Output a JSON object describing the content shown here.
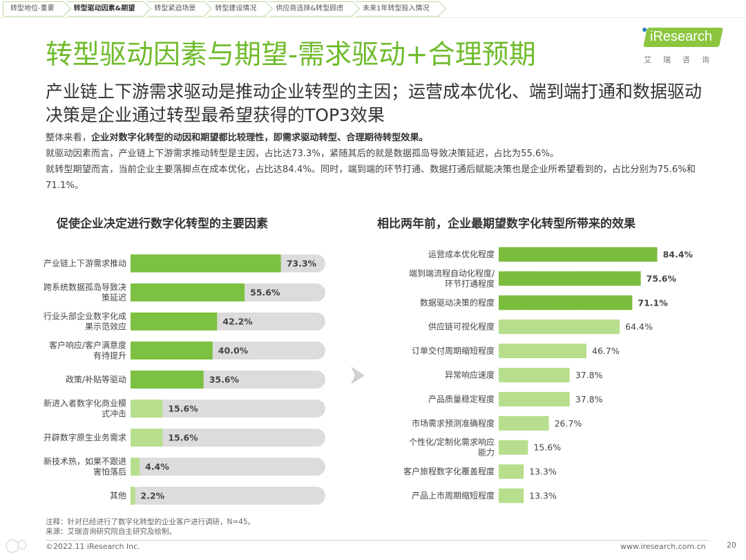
{
  "nav": {
    "tabs": [
      {
        "label": "转型地位-重要",
        "active": false
      },
      {
        "label": "转型驱动因素&期望",
        "active": true
      },
      {
        "label": "转型紧迫场景",
        "active": false
      },
      {
        "label": "转型建设情况",
        "active": false
      },
      {
        "label": "供应商选择&转型顾虑",
        "active": false
      },
      {
        "label": "未来1年转型投入情况",
        "active": false
      }
    ]
  },
  "logo": {
    "brand": "iResearch",
    "sub": "艾瑞咨询"
  },
  "title": "转型驱动因素与期望-需求驱动+合理预期",
  "subtitle": "产业链上下游需求驱动是推动企业转型的主因；运营成本优化、端到端打通和数据驱动决策是企业通过转型最希望获得的TOP3效果",
  "body": {
    "p1_prefix": "整体来看，",
    "p1_bold": "企业对数字化转型的动因和期望都比较理性，即需求驱动转型、合理期待转型效果。",
    "p2": "就驱动因素而言，产业链上下游需求推动转型是主因，占比达73.3%，紧随其后的就是数据孤岛导致决策延迟，占比为55.6%。",
    "p3": "就转型期望而言，当前企业主要落脚点在成本优化，占比达84.4%。同时，端到端的环节打通、数据打通后赋能决策也是企业所希望看到的，占比分别为75.6%和71.1%。"
  },
  "footer": {
    "note": "注释：针对已经进行了数字化转型的企业客户进行调研，N=45。",
    "source": "来源：艾瑞咨询研究院自主研究及绘制。",
    "copyright": "©2022.11 iResearch Inc.",
    "url": "www.iresearch.com.cn",
    "page": "20"
  },
  "colors": {
    "accent": "#6fbb2c",
    "bar_dark": "#7dc142",
    "bar_light": "#b7de8d",
    "track": "#dcdcdc"
  },
  "chart_data": [
    {
      "type": "bar",
      "orientation": "horizontal",
      "title": "促使企业决定进行数字化转型的主要因素",
      "categories": [
        "产业链上下游需求推动",
        "跨系统数据孤岛导致决策延迟",
        "行业头部企业数字化成果示范效应",
        "客户响应/客户满意度有待提升",
        "政策/补贴等驱动",
        "新进入者数字化商业模式冲击",
        "开辟数字原生业务需求",
        "新技术热，如果不跟进害怕落后",
        "其他"
      ],
      "label_lines": [
        [
          "产业链上下游需求推动"
        ],
        [
          "跨系统数据孤岛导致决",
          "策延迟"
        ],
        [
          "行业头部企业数字化成",
          "果示范效应"
        ],
        [
          "客户响应/客户满意度",
          "有待提升"
        ],
        [
          "政策/补贴等驱动"
        ],
        [
          "新进入者数字化商业模",
          "式冲击"
        ],
        [
          "开辟数字原生业务需求"
        ],
        [
          "新技术热，如果不跟进",
          "害怕落后"
        ],
        [
          "其他"
        ]
      ],
      "values": [
        73.3,
        55.6,
        42.2,
        40.0,
        35.6,
        15.6,
        15.6,
        4.4,
        2.2
      ],
      "value_labels": [
        "73.3%",
        "55.6%",
        "42.2%",
        "40.0%",
        "35.6%",
        "15.6%",
        "15.6%",
        "4.4%",
        "2.2%"
      ],
      "highlight_top": 5,
      "xlim": [
        0,
        100
      ]
    },
    {
      "type": "bar",
      "orientation": "horizontal",
      "title": "相比两年前，企业最期望数字化转型所带来的效果",
      "categories": [
        "运营成本优化程度",
        "端到端流程自动化程度/环节打通程度",
        "数据驱动决策的程度",
        "供应链可视化程度",
        "订单交付周期缩短程度",
        "异常响应速度",
        "产品质量稳定程度",
        "市场需求预测准确程度",
        "个性化/定制化需求响应能力",
        "客户旅程数字化覆盖程度",
        "产品上市周期缩短程度"
      ],
      "label_lines": [
        [
          "运营成本优化程度"
        ],
        [
          "端到端流程自动化程度/",
          "环节打通程度"
        ],
        [
          "数据驱动决策的程度"
        ],
        [
          "供应链可视化程度"
        ],
        [
          "订单交付周期缩短程度"
        ],
        [
          "异常响应速度"
        ],
        [
          "产品质量稳定程度"
        ],
        [
          "市场需求预测准确程度"
        ],
        [
          "个性化/定制化需求响应",
          "能力"
        ],
        [
          "客户旅程数字化覆盖程度"
        ],
        [
          "产品上市周期缩短程度"
        ]
      ],
      "values": [
        84.4,
        75.6,
        71.1,
        64.4,
        46.7,
        37.8,
        37.8,
        26.7,
        15.6,
        13.3,
        13.3
      ],
      "value_labels": [
        "84.4%",
        "75.6%",
        "71.1%",
        "64.4%",
        "46.7%",
        "37.8%",
        "37.8%",
        "26.7%",
        "15.6%",
        "13.3%",
        "13.3%"
      ],
      "highlight_top": 3,
      "xlim": [
        0,
        100
      ]
    }
  ]
}
